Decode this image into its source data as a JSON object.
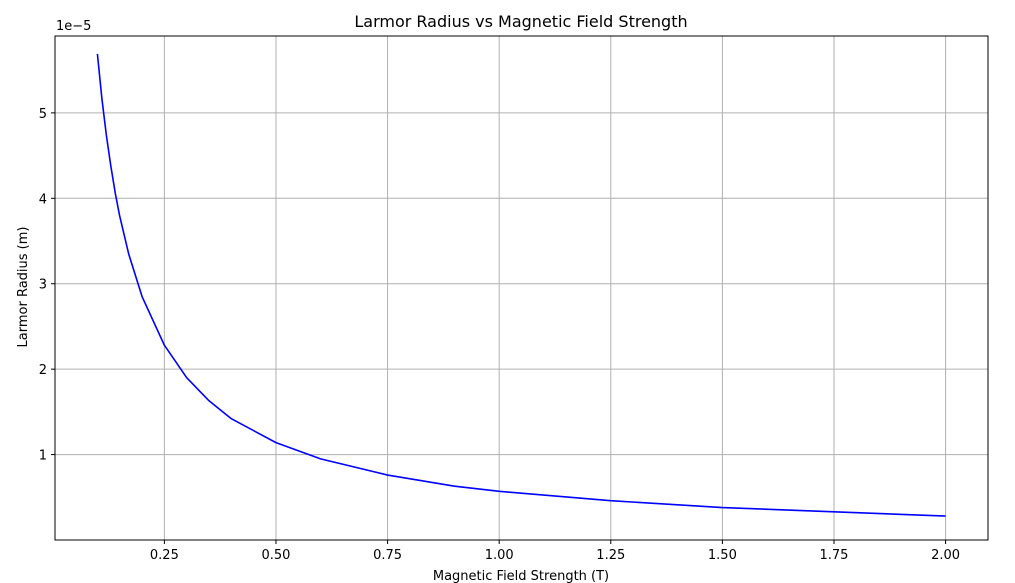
{
  "chart_data": {
    "type": "line",
    "title": "Larmor Radius vs Magnetic Field Strength",
    "xlabel": "Magnetic Field Strength (T)",
    "ylabel": "Larmor Radius (m)",
    "y_offset_label": "1e−5",
    "y_scale_factor": 1e-05,
    "xlim": [
      0.005,
      2.095
    ],
    "ylim": [
      0.0,
      5.9e-05
    ],
    "x_ticks": [
      0.25,
      0.5,
      0.75,
      1.0,
      1.25,
      1.5,
      1.75,
      2.0
    ],
    "x_tick_labels": [
      "0.25",
      "0.50",
      "0.75",
      "1.00",
      "1.25",
      "1.50",
      "1.75",
      "2.00"
    ],
    "y_ticks": [
      1e-05,
      2e-05,
      3e-05,
      4e-05,
      5e-05
    ],
    "y_tick_labels": [
      "1",
      "2",
      "3",
      "4",
      "5"
    ],
    "grid": true,
    "series": [
      {
        "color": "#0000ff",
        "x": [
          0.1,
          0.11,
          0.12,
          0.13,
          0.14,
          0.15,
          0.17,
          0.2,
          0.25,
          0.3,
          0.35,
          0.4,
          0.5,
          0.6,
          0.75,
          0.9,
          1.0,
          1.25,
          1.5,
          1.75,
          2.0
        ],
        "y": [
          5.69e-05,
          5.17e-05,
          4.74e-05,
          4.38e-05,
          4.06e-05,
          3.79e-05,
          3.35e-05,
          2.85e-05,
          2.28e-05,
          1.9e-05,
          1.63e-05,
          1.42e-05,
          1.14e-05,
          9.5e-06,
          7.6e-06,
          6.3e-06,
          5.7e-06,
          4.6e-06,
          3.8e-06,
          3.3e-06,
          2.8e-06
        ]
      }
    ]
  }
}
